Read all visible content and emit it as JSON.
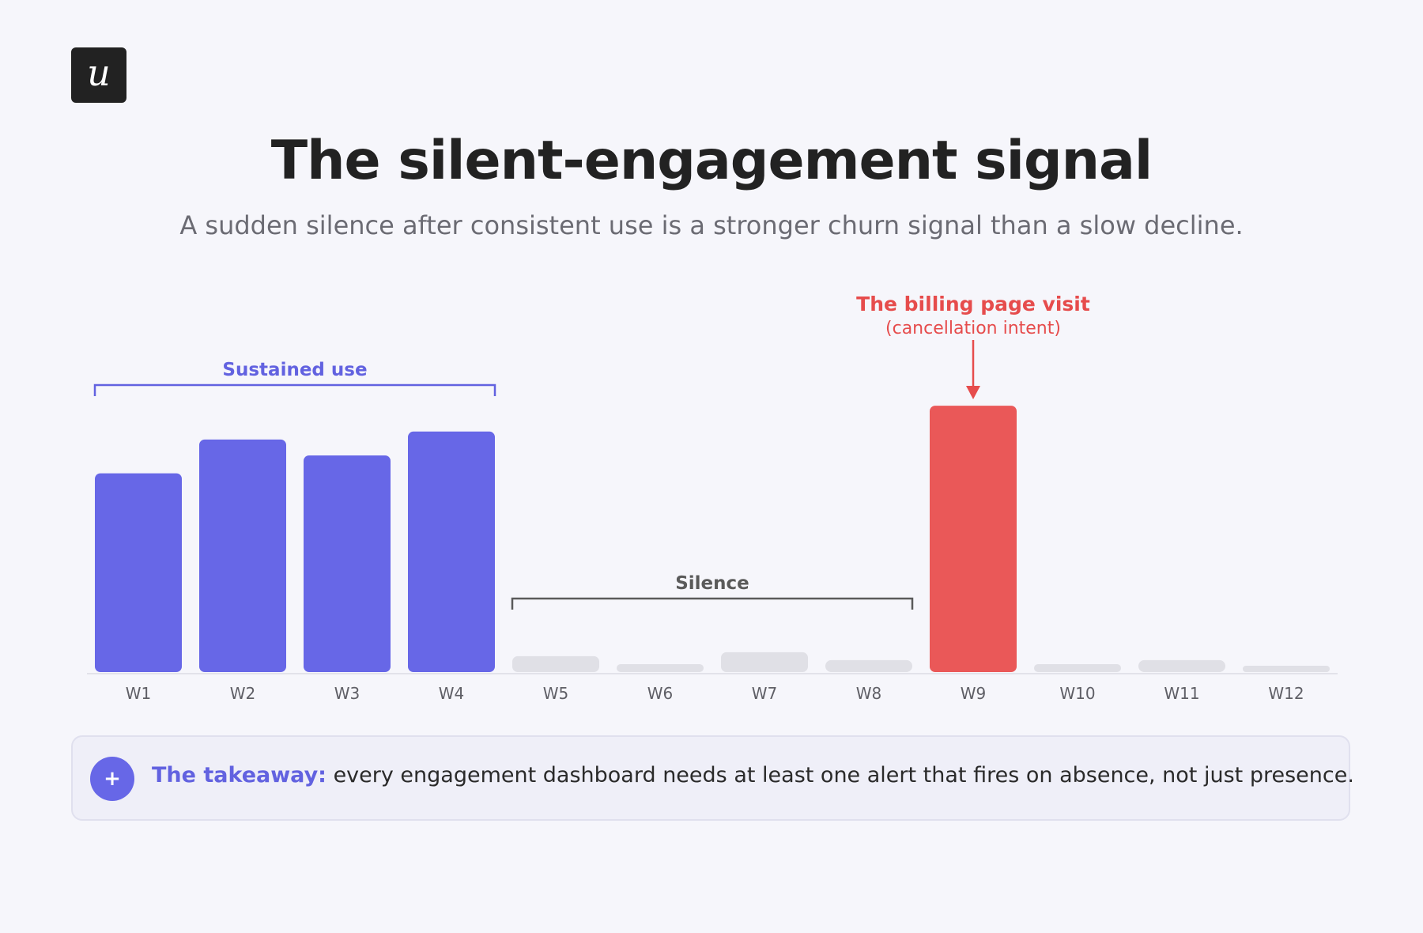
{
  "brand": {
    "logo_letter": "u",
    "logo_bg": "#222222"
  },
  "header": {
    "title": "The silent-engagement signal",
    "subtitle": "A sudden silence after consistent use is a stronger churn signal than a slow decline."
  },
  "chart_data": {
    "type": "bar",
    "categories": [
      "W1",
      "W2",
      "W3",
      "W4",
      "W5",
      "W6",
      "W7",
      "W8",
      "W9",
      "W10",
      "W11",
      "W12"
    ],
    "values": [
      100,
      117,
      109,
      121,
      8,
      4,
      10,
      6,
      134,
      4,
      6,
      2
    ],
    "ylim": [
      0,
      140
    ],
    "grid": false,
    "colors": {
      "sustained": "#6767e7",
      "silence": "#e0e0e6",
      "spike": "#ea5858"
    },
    "annotations": [
      {
        "label": "Sustained use",
        "range": [
          "W1",
          "W4"
        ],
        "color": "#6262e0"
      },
      {
        "label": "Silence",
        "range": [
          "W5",
          "W8"
        ],
        "color": "#5a5a5a"
      },
      {
        "label": "The billing page visit",
        "sublabel": "(cancellation intent)",
        "target": "W9",
        "color": "#e64c4c"
      }
    ]
  },
  "takeaway": {
    "icon": "plus-icon",
    "label": "The takeaway:",
    "text": " every engagement dashboard needs at least one alert that fires on absence, not just presence."
  }
}
